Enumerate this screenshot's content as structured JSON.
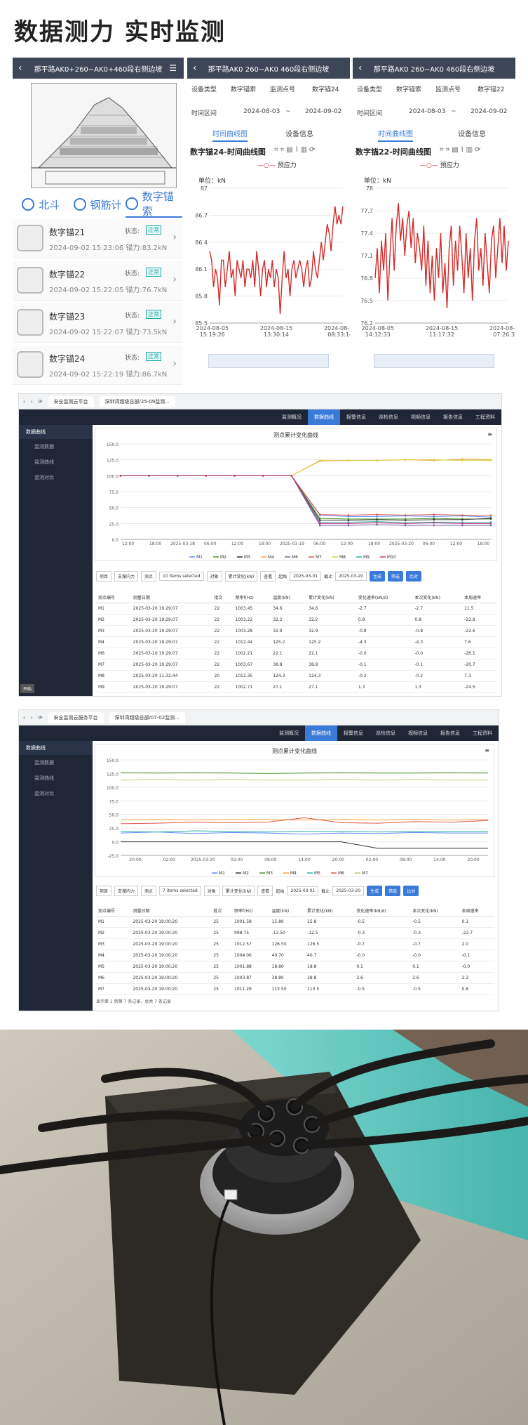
{
  "page_title": "数据测力 实时监测",
  "phone1": {
    "header": "那平路AK0+260~AK0+460段右侧边坡",
    "tabs": [
      {
        "label": "北斗",
        "icon": "location-icon"
      },
      {
        "label": "钢筋计",
        "icon": "rebar-gauge-icon"
      },
      {
        "label": "数字锚索",
        "icon": "anchor-icon"
      }
    ],
    "status_label": "状态:",
    "badge": "正常",
    "items": [
      {
        "name": "数字锚21",
        "sub": "2024-09-02 15:23:06 锚力:83.2kN"
      },
      {
        "name": "数字锚22",
        "sub": "2024-09-02 15:22:05 锚力:76.7kN"
      },
      {
        "name": "数字锚23",
        "sub": "2024-09-02 15:22:07 锚力:73.5kN"
      },
      {
        "name": "数字锚24",
        "sub": "2024-09-02 15:22:19 锚力:86.7kN"
      }
    ]
  },
  "phone2": {
    "header": "那平路AK0 260~AK0 460段右侧边坡",
    "f1_label": "设备类型",
    "f1_value": "数字锚索",
    "f2_label": "监测点号",
    "f2_value": "数字锚24",
    "time_label": "时间区间",
    "date_from": "2024-08-03",
    "sep": "~",
    "date_to": "2024-09-02",
    "tab1": "时间曲线图",
    "tab2": "设备信息",
    "chart_title": "数字锚24-时间曲线图",
    "legend": "预应力",
    "unit": "单位：kN"
  },
  "phone3": {
    "header": "那平路AK0 260~AK0 460段右侧边坡",
    "f1_label": "设备类型",
    "f1_value": "数字锚索",
    "f2_label": "监测点号",
    "f2_value": "数字锚22",
    "time_label": "时间区间",
    "date_from": "2024-08-03",
    "sep": "~",
    "date_to": "2024-09-02",
    "tab1": "时间曲线图",
    "tab2": "设备信息",
    "chart_title": "数字锚22-时间曲线图",
    "legend": "预应力",
    "unit": "单位：kN"
  },
  "web1": {
    "browser_tab1": "安全监测云平台",
    "browser_tab2": "深圳湾超级总部/25-09监测...",
    "nav": [
      "监测概况",
      "数据曲线",
      "报警信息",
      "巡检信息",
      "视频信息",
      "报告信息",
      "工程资料"
    ],
    "sidebar_head": "数据曲线",
    "sidebar_items": [
      "监测数据",
      "监测曲线",
      "监测对比"
    ],
    "chart_title": "测点累计变化曲线",
    "ctrl": {
      "item_label": "项目",
      "item_val": "支撑内力",
      "point_label": "测点",
      "point_val": "10 items selected",
      "obj_label": "对象",
      "obj_val": "累计变化(kN)",
      "sub_label": "查看",
      "start_label": "起始",
      "start_val": "2025-03-01",
      "end_label": "截止",
      "end_val": "2025-03-20",
      "b1": "生成",
      "b2": "筛选",
      "b3": "比对"
    },
    "cols": [
      "测点编号",
      "测量日期",
      "批次",
      "频率f(Hz)",
      "温度(kN)",
      "累计变化(kN)",
      "变化速率(kN/d)",
      "本次变化(kN)",
      "本周速率"
    ],
    "rows": [
      [
        "M1",
        "2025-03-20 19:29:07",
        "22",
        "1003.45",
        "34.6",
        "34.6",
        "-2.7",
        "-2.7",
        "11.5"
      ],
      [
        "M2",
        "2025-03-20 19:29:07",
        "22",
        "1003.22",
        "32.2",
        "32.2",
        "0.8",
        "0.8",
        "-22.8"
      ],
      [
        "M3",
        "2025-03-20 19:29:07",
        "22",
        "1003.28",
        "32.9",
        "32.9",
        "-0.8",
        "-0.8",
        "-22.6"
      ],
      [
        "M4",
        "2025-03-20 19:29:07",
        "22",
        "1012.44",
        "125.2",
        "125.2",
        "-4.3",
        "-4.3",
        "7.6"
      ],
      [
        "M6",
        "2025-03-20 19:29:07",
        "22",
        "1002.21",
        "22.1",
        "22.1",
        "-0.0",
        "-0.0",
        "-26.1"
      ],
      [
        "M7",
        "2025-03-20 19:29:07",
        "22",
        "1003.67",
        "38.8",
        "38.8",
        "-0.1",
        "-0.1",
        "-20.7"
      ],
      [
        "M8",
        "2025-03-20 11:32:44",
        "20",
        "1012.35",
        "124.3",
        "124.3",
        "-0.2",
        "-0.2",
        "7.3"
      ],
      [
        "M9",
        "2025-03-20 19:29:07",
        "22",
        "1002.71",
        "27.1",
        "27.1",
        "1.3",
        "1.3",
        "-24.5"
      ]
    ],
    "start_btn": "开始"
  },
  "web2": {
    "browser_tab1": "安全监测云服务平台",
    "browser_tab2": "深圳湾超级总部/07-02监测...",
    "nav": [
      "监测概况",
      "数据曲线",
      "报警信息",
      "巡检信息",
      "视频信息",
      "报告信息",
      "工程资料"
    ],
    "sidebar_head": "数据曲线",
    "sidebar_items": [
      "监测数据",
      "监测曲线",
      "监测对比"
    ],
    "chart_title": "测点累计变化曲线",
    "ctrl": {
      "item_label": "项目",
      "item_val": "支撑内力",
      "point_label": "测点",
      "point_val": "7 items selected",
      "obj_label": "对象",
      "obj_val": "累计变化(kN)",
      "sub_label": "查看",
      "start_label": "起始",
      "start_val": "2025-03-01",
      "end_label": "截止",
      "end_val": "2025-03-20",
      "b1": "生成",
      "b2": "筛选",
      "b3": "比对"
    },
    "cols": [
      "测点编号",
      "测量日期",
      "批次",
      "频率f(Hz)",
      "温度(kN)",
      "累计变化(kN)",
      "变化速率(kN/d)",
      "本次变化(kN)",
      "本周速率"
    ],
    "rows": [
      [
        "M1",
        "2025-03-20 19:00:20",
        "25",
        "1001.58",
        "15.80",
        "15.8",
        "-0.5",
        "-0.5",
        "0.1"
      ],
      [
        "M2",
        "2025-03-20 19:00:20",
        "25",
        "998.75",
        "-12.50",
        "-12.5",
        "-0.3",
        "-0.3",
        "-22.7"
      ],
      [
        "M3",
        "2025-03-20 19:00:20",
        "25",
        "1012.57",
        "126.50",
        "126.5",
        "-0.7",
        "-0.7",
        "2.0"
      ],
      [
        "M4",
        "2025-03-20 19:00:20",
        "25",
        "1004.06",
        "40.70",
        "40.7",
        "-0.0",
        "-0.0",
        "-0.1"
      ],
      [
        "M5",
        "2025-03-20 19:00:20",
        "25",
        "1001.88",
        "18.80",
        "18.8",
        "0.1",
        "0.1",
        "-0.0"
      ],
      [
        "M6",
        "2025-03-20 19:00:20",
        "25",
        "1003.87",
        "38.80",
        "38.8",
        "2.6",
        "2.6",
        "2.2"
      ],
      [
        "M7",
        "2025-03-20 19:00:20",
        "25",
        "1011.29",
        "113.50",
        "113.5",
        "-0.5",
        "-0.5",
        "0.8"
      ]
    ],
    "footer": "显示第 1 到第 7 条记录，总共 7 条记录"
  },
  "chart_data": [
    {
      "type": "line",
      "title": "数字锚24-时间曲线图",
      "ylabel": "单位：kN",
      "ylim": [
        85.5,
        87
      ],
      "yticks": [
        "87",
        "86.7",
        "86.4",
        "86.1",
        "85.8",
        "85.5"
      ],
      "xticks": [
        "2024-08-05 15:19:26",
        "2024-08-15 13:30:14",
        "2024-08-25 08:33:14"
      ],
      "series": [
        {
          "name": "预应力",
          "color": "#d42a2a",
          "values": [
            86.3,
            86.2,
            85.9,
            86.1,
            86.0,
            85.7,
            86.2,
            86.2,
            85.9,
            86.1,
            86.3,
            86.0,
            86.1,
            85.8,
            86.2,
            86.1,
            86.0,
            86.2,
            85.9,
            86.1,
            86.1,
            86.0,
            86.2,
            85.9,
            86.3,
            86.1,
            85.8,
            86.1,
            86.2,
            85.9,
            86.1,
            86.0,
            86.2,
            85.9,
            86.1,
            86.0,
            85.6,
            86.0,
            86.3,
            86.0,
            86.1,
            85.8,
            86.1,
            86.2,
            86.0,
            86.1,
            86.2,
            86.1,
            85.9,
            86.1,
            86.2,
            85.9,
            86.0,
            86.3,
            86.1,
            86.0,
            86.2,
            86.4,
            86.2,
            86.4,
            86.6,
            86.5,
            86.3,
            86.6,
            86.8,
            86.6,
            86.7,
            86.6,
            86.8
          ]
        }
      ]
    },
    {
      "type": "line",
      "title": "数字锚22-时间曲线图",
      "ylabel": "单位：kN",
      "ylim": [
        76.2,
        78
      ],
      "yticks": [
        "78",
        "77.7",
        "77.4",
        "77.1",
        "76.8",
        "76.5",
        "76.2"
      ],
      "xticks": [
        "2024-08-05 14:12:33",
        "2024-08-15 11:17:32",
        "2024-08-25 07:26:33"
      ],
      "series": [
        {
          "name": "预应力",
          "color": "#d42a2a",
          "values": [
            76.8,
            77.2,
            76.6,
            77.3,
            76.9,
            77.4,
            76.5,
            77.1,
            77.6,
            76.9,
            77.5,
            77.8,
            77.3,
            77.6,
            77.1,
            77.5,
            77.7,
            77.2,
            77.6,
            77.0,
            77.4,
            77.2,
            76.9,
            77.5,
            76.7,
            77.3,
            76.6,
            77.1,
            76.5,
            77.2,
            76.8,
            77.4,
            76.6,
            77.0,
            76.4,
            77.2,
            77.5,
            76.7,
            77.3,
            76.9,
            77.5,
            77.1,
            76.6,
            77.4,
            76.8,
            77.2,
            76.5,
            77.3,
            77.6,
            76.9,
            77.2,
            76.7,
            77.4,
            77.0,
            76.6,
            77.3,
            77.5,
            76.8,
            77.2,
            77.6,
            77.0,
            77.5,
            76.9,
            77.3
          ]
        }
      ]
    },
    {
      "type": "line",
      "title": "测点累计变化曲线",
      "ylim": [
        0,
        150
      ],
      "yticks": [
        "150.0",
        "125.0",
        "100.0",
        "75.0",
        "50.0",
        "25.0",
        "0.0"
      ],
      "xticks": [
        "12:00",
        "18:00",
        "2025-03-18",
        "06:00",
        "12:00",
        "18:00",
        "2025-03-19",
        "06:00",
        "12:00",
        "18:00",
        "2025-03-20",
        "06:00",
        "12:00",
        "18:00"
      ],
      "series": [
        {
          "name": "M1",
          "color": "#5b8ff9",
          "values": [
            100,
            100,
            100,
            100,
            100,
            100,
            100,
            38,
            36,
            36,
            37,
            36,
            37,
            35
          ]
        },
        {
          "name": "M2",
          "color": "#4e9a2a",
          "values": [
            100,
            100,
            100,
            100,
            100,
            100,
            100,
            33,
            32,
            32,
            32,
            33,
            32,
            32
          ]
        },
        {
          "name": "M3",
          "color": "#333333",
          "values": [
            100,
            100,
            100,
            100,
            100,
            100,
            100,
            30,
            30,
            31,
            30,
            31,
            31,
            33
          ]
        },
        {
          "name": "M4",
          "color": "#f2a33a",
          "values": [
            100,
            100,
            100,
            100,
            100,
            100,
            100,
            123,
            124,
            124,
            125,
            124,
            126,
            125
          ]
        },
        {
          "name": "M6",
          "color": "#7a5ca8",
          "values": [
            100,
            100,
            100,
            100,
            100,
            100,
            100,
            22,
            22,
            23,
            22,
            22,
            22,
            22
          ]
        },
        {
          "name": "M7",
          "color": "#e3574d",
          "values": [
            100,
            100,
            100,
            100,
            100,
            100,
            100,
            39,
            38,
            39,
            38,
            39,
            38,
            38
          ]
        },
        {
          "name": "M8",
          "color": "#d9d13a",
          "values": [
            100,
            100,
            100,
            100,
            100,
            100,
            100,
            124,
            124,
            124,
            125,
            125,
            124,
            124
          ]
        },
        {
          "name": "M9",
          "color": "#2bb3a8",
          "values": [
            100,
            100,
            100,
            100,
            100,
            100,
            100,
            27,
            27,
            28,
            26,
            27,
            27,
            27
          ]
        },
        {
          "name": "M10",
          "color": "#c13a7a",
          "values": [
            100,
            100,
            100,
            100,
            100,
            100,
            100,
            25,
            25,
            26,
            25,
            26,
            25,
            25
          ]
        }
      ]
    },
    {
      "type": "line",
      "title": "测点累计变化曲线",
      "ylim": [
        -25,
        150
      ],
      "yticks": [
        "150.0",
        "125.0",
        "100.0",
        "75.0",
        "50.0",
        "25.0",
        "0.0",
        "-25.0"
      ],
      "xticks": [
        "20:00",
        "02:00",
        "2025-03-20",
        "02:00",
        "08:00",
        "14:00",
        "20:00",
        "02:00",
        "08:00",
        "14:00",
        "20:00"
      ],
      "series": [
        {
          "name": "M1",
          "color": "#5b8ff9",
          "values": [
            16,
            18,
            15,
            17,
            16,
            14,
            16,
            15,
            17,
            16,
            16
          ]
        },
        {
          "name": "M2",
          "color": "#333333",
          "values": [
            0,
            0,
            0,
            0,
            0,
            0,
            0,
            -12,
            -12,
            -12,
            -12
          ]
        },
        {
          "name": "M3",
          "color": "#4e9a2a",
          "values": [
            127,
            126,
            127,
            126,
            125,
            126,
            127,
            126,
            126,
            127,
            126
          ]
        },
        {
          "name": "M4",
          "color": "#f2a33a",
          "values": [
            40,
            41,
            40,
            41,
            41,
            40,
            41,
            40,
            41,
            40,
            41
          ]
        },
        {
          "name": "M5",
          "color": "#2bb3a8",
          "values": [
            19,
            18,
            20,
            19,
            18,
            19,
            19,
            18,
            19,
            19,
            19
          ]
        },
        {
          "name": "M6",
          "color": "#e3574d",
          "values": [
            33,
            34,
            36,
            35,
            36,
            44,
            35,
            34,
            37,
            36,
            39
          ]
        },
        {
          "name": "M7",
          "color": "#b5d36a",
          "values": [
            113,
            114,
            113,
            114,
            113,
            113,
            114,
            113,
            114,
            113,
            113
          ]
        }
      ]
    }
  ]
}
